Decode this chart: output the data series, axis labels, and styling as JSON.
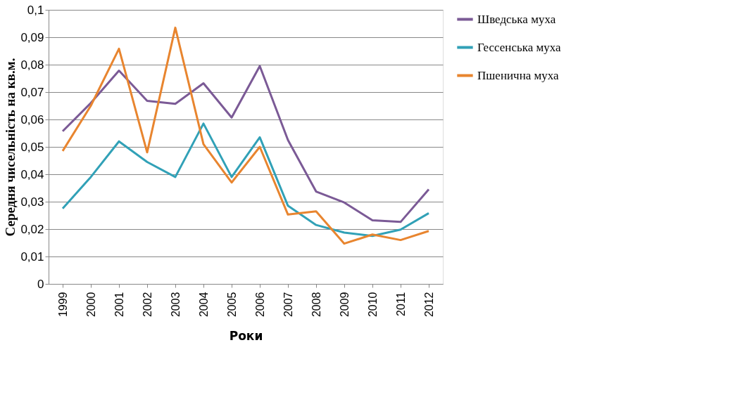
{
  "chart_data": {
    "type": "line",
    "xlabel": "Роки",
    "ylabel": "Середня чисельність  на кв.м.",
    "categories": [
      "1999",
      "2000",
      "2001",
      "2002",
      "2003",
      "2004",
      "2005",
      "2006",
      "2007",
      "2008",
      "2009",
      "2010",
      "2011",
      "2012"
    ],
    "series": [
      {
        "name": "Шведська муха",
        "color": "#7b5a96",
        "values": [
          0.0557,
          0.066,
          0.0778,
          0.0668,
          0.0657,
          0.0732,
          0.0607,
          0.0795,
          0.0525,
          0.0337,
          0.0297,
          0.0232,
          0.0226,
          0.0345
        ]
      },
      {
        "name": "Гессенська муха",
        "color": "#31a1b7",
        "values": [
          0.0275,
          0.039,
          0.052,
          0.0445,
          0.039,
          0.0585,
          0.039,
          0.0535,
          0.0285,
          0.0215,
          0.0187,
          0.0175,
          0.0198,
          0.0258
        ]
      },
      {
        "name": "Пшенична муха",
        "color": "#e8852f",
        "values": [
          0.0485,
          0.065,
          0.0858,
          0.048,
          0.0935,
          0.051,
          0.037,
          0.05,
          0.0253,
          0.0265,
          0.0147,
          0.018,
          0.016,
          0.0193
        ]
      }
    ],
    "ylim": [
      0,
      0.1
    ],
    "yticks": [
      {
        "value": 0,
        "label": "0"
      },
      {
        "value": 0.01,
        "label": "0,01"
      },
      {
        "value": 0.02,
        "label": "0,02"
      },
      {
        "value": 0.03,
        "label": "0,03"
      },
      {
        "value": 0.04,
        "label": "0,04"
      },
      {
        "value": 0.05,
        "label": "0,05"
      },
      {
        "value": 0.06,
        "label": "0,06"
      },
      {
        "value": 0.07,
        "label": "0,07"
      },
      {
        "value": 0.08,
        "label": "0,08"
      },
      {
        "value": 0.09,
        "label": "0,09"
      },
      {
        "value": 0.1,
        "label": "0,1"
      }
    ],
    "grid": "y",
    "legend": "right",
    "marker": "none",
    "line_style": "solid"
  }
}
